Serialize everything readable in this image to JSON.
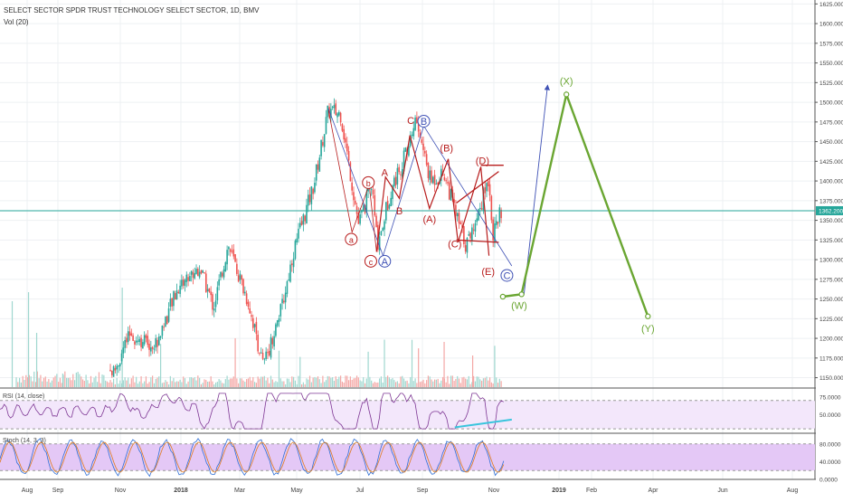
{
  "header": {
    "title": "SELECT SECTOR SPDR TRUST TECHNOLOGY SELECT SECTOR, 1D, BMV",
    "vol_label": "Vol (20)"
  },
  "panes": {
    "rsi_label": "RSI (14, close)",
    "stoch_label": "Stoch (14, 3, 3)"
  },
  "colors": {
    "up": "#26a69a",
    "down": "#ef5350",
    "wave_red": "#b71c1c",
    "wave_blue": "#3f51b5",
    "wave_green": "#6aa632",
    "price_line": "#26a69a"
  },
  "chart_data": {
    "type": "candlestick",
    "price_axis": {
      "ticks": [
        "1625.000",
        "1600.000",
        "1575.000",
        "1550.000",
        "1525.000",
        "1500.000",
        "1475.000",
        "1450.000",
        "1425.000",
        "1400.000",
        "1375.000",
        "1350.000",
        "1325.000",
        "1300.000",
        "1275.000",
        "1250.000",
        "1225.000",
        "1200.000",
        "1175.000",
        "1150.000"
      ],
      "ylim": [
        1138,
        1630
      ],
      "current_price": "1362.200"
    },
    "rsi_axis": {
      "ticks": [
        "75.0000",
        "50.0000"
      ],
      "ylim": [
        25,
        85
      ]
    },
    "stoch_axis": {
      "ticks": [
        "80.0000",
        "40.0000",
        "0.0000"
      ],
      "ylim": [
        0,
        100
      ]
    },
    "time_axis": {
      "labels": [
        "Aug",
        "Sep",
        "Nov",
        "2018",
        "Mar",
        "May",
        "Jul",
        "Sep",
        "Nov",
        "2019",
        "Feb",
        "Apr",
        "Jun",
        "Aug"
      ],
      "bold": [
        "2018",
        "2019"
      ]
    },
    "price_points": [
      {
        "x": 0.14,
        "y": 1158
      },
      {
        "x": 0.16,
        "y": 1205
      },
      {
        "x": 0.19,
        "y": 1190
      },
      {
        "x": 0.22,
        "y": 1268
      },
      {
        "x": 0.245,
        "y": 1290
      },
      {
        "x": 0.262,
        "y": 1240
      },
      {
        "x": 0.28,
        "y": 1318
      },
      {
        "x": 0.305,
        "y": 1245
      },
      {
        "x": 0.323,
        "y": 1165
      },
      {
        "x": 0.345,
        "y": 1235
      },
      {
        "x": 0.36,
        "y": 1310
      },
      {
        "x": 0.385,
        "y": 1395
      },
      {
        "x": 0.403,
        "y": 1490
      },
      {
        "x": 0.418,
        "y": 1485
      },
      {
        "x": 0.44,
        "y": 1345
      },
      {
        "x": 0.456,
        "y": 1395
      },
      {
        "x": 0.463,
        "y": 1320
      },
      {
        "x": 0.48,
        "y": 1390
      },
      {
        "x": 0.5,
        "y": 1440
      },
      {
        "x": 0.51,
        "y": 1480
      },
      {
        "x": 0.528,
        "y": 1400
      },
      {
        "x": 0.545,
        "y": 1410
      },
      {
        "x": 0.56,
        "y": 1355
      },
      {
        "x": 0.572,
        "y": 1318
      },
      {
        "x": 0.585,
        "y": 1355
      },
      {
        "x": 0.6,
        "y": 1405
      },
      {
        "x": 0.605,
        "y": 1330
      },
      {
        "x": 0.615,
        "y": 1362
      }
    ],
    "waves": [
      {
        "label": "a",
        "color": "wave_red",
        "circled": true
      },
      {
        "label": "b",
        "color": "wave_red",
        "circled": true
      },
      {
        "label": "c",
        "color": "wave_red",
        "circled": true
      },
      {
        "label": "A",
        "color": "wave_red",
        "circled": false
      },
      {
        "label": "B",
        "color": "wave_red",
        "circled": false
      },
      {
        "label": "C",
        "color": "wave_red",
        "circled": false
      },
      {
        "label": "A",
        "color": "wave_blue",
        "circled": true
      },
      {
        "label": "B",
        "color": "wave_blue",
        "circled": true
      },
      {
        "label": "C",
        "color": "wave_blue",
        "circled": true
      },
      {
        "label": "(A)",
        "color": "wave_red",
        "circled": false
      },
      {
        "label": "(B)",
        "color": "wave_red",
        "circled": false
      },
      {
        "label": "(C)",
        "color": "wave_red",
        "circled": false
      },
      {
        "label": "(D)",
        "color": "wave_red",
        "circled": false
      },
      {
        "label": "(E)",
        "color": "wave_red",
        "circled": false
      },
      {
        "label": "(W)",
        "color": "wave_green",
        "circled": false
      },
      {
        "label": "(X)",
        "color": "wave_green",
        "circled": false
      },
      {
        "label": "(Y)",
        "color": "wave_green",
        "circled": false
      }
    ],
    "projection": [
      {
        "date_frac": 0.617,
        "price": 1253
      },
      {
        "date_frac": 0.64,
        "price": 1256
      },
      {
        "date_frac": 0.695,
        "price": 1510
      },
      {
        "date_frac": 0.795,
        "price": 1228
      }
    ]
  }
}
